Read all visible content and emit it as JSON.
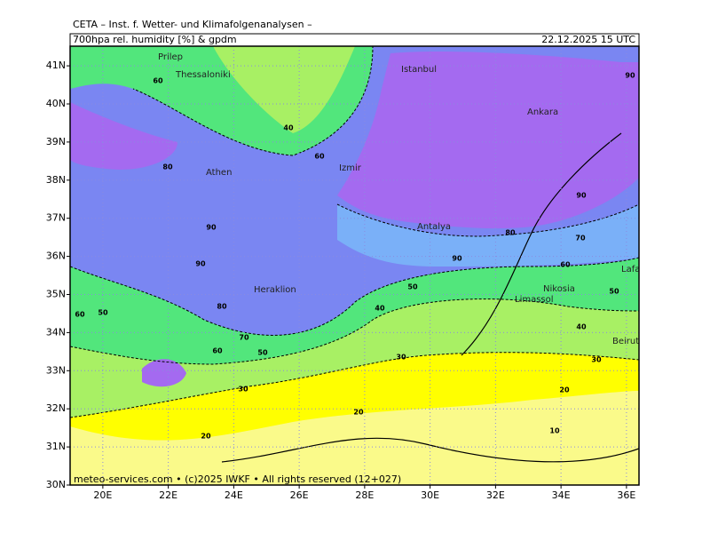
{
  "header": {
    "title": "CETA – Inst. f. Wetter- und Klimafolgenanalysen –",
    "field": "700hpa rel. humidity [%] & gpdm",
    "valid": "22.12.2025 15 UTC"
  },
  "map": {
    "lat_ticks": [
      {
        "value": 30,
        "label": "30N"
      },
      {
        "value": 31,
        "label": "31N"
      },
      {
        "value": 32,
        "label": "32N"
      },
      {
        "value": 33,
        "label": "33N"
      },
      {
        "value": 34,
        "label": "34N"
      },
      {
        "value": 35,
        "label": "35N"
      },
      {
        "value": 36,
        "label": "36N"
      },
      {
        "value": 37,
        "label": "37N"
      },
      {
        "value": 38,
        "label": "38N"
      },
      {
        "value": 39,
        "label": "39N"
      },
      {
        "value": 40,
        "label": "40N"
      },
      {
        "value": 41,
        "label": "41N"
      }
    ],
    "lon_ticks": [
      {
        "value": 20,
        "label": "20E"
      },
      {
        "value": 22,
        "label": "22E"
      },
      {
        "value": 24,
        "label": "24E"
      },
      {
        "value": 26,
        "label": "26E"
      },
      {
        "value": 28,
        "label": "28E"
      },
      {
        "value": 30,
        "label": "30E"
      },
      {
        "value": 32,
        "label": "32E"
      },
      {
        "value": 34,
        "label": "34E"
      },
      {
        "value": 36,
        "label": "36E"
      }
    ],
    "cities": [
      "Istanbul",
      "Ankara",
      "Thessaloniki",
      "Prilep",
      "Izmir",
      "Athen",
      "Antalya",
      "Heraklion",
      "Nikosia",
      "Limassol",
      "Lafakia",
      "Beirut"
    ],
    "contour_labels": [
      90,
      90,
      80,
      70,
      60,
      50,
      40,
      30,
      30,
      20,
      20,
      20,
      10,
      30,
      40,
      50,
      60,
      70,
      80,
      90,
      60,
      40,
      90,
      60,
      80,
      90,
      50,
      60,
      50
    ]
  },
  "footer": "meteo-services.com • (c)2025 IWKF • All rights reserved (12+027)"
}
